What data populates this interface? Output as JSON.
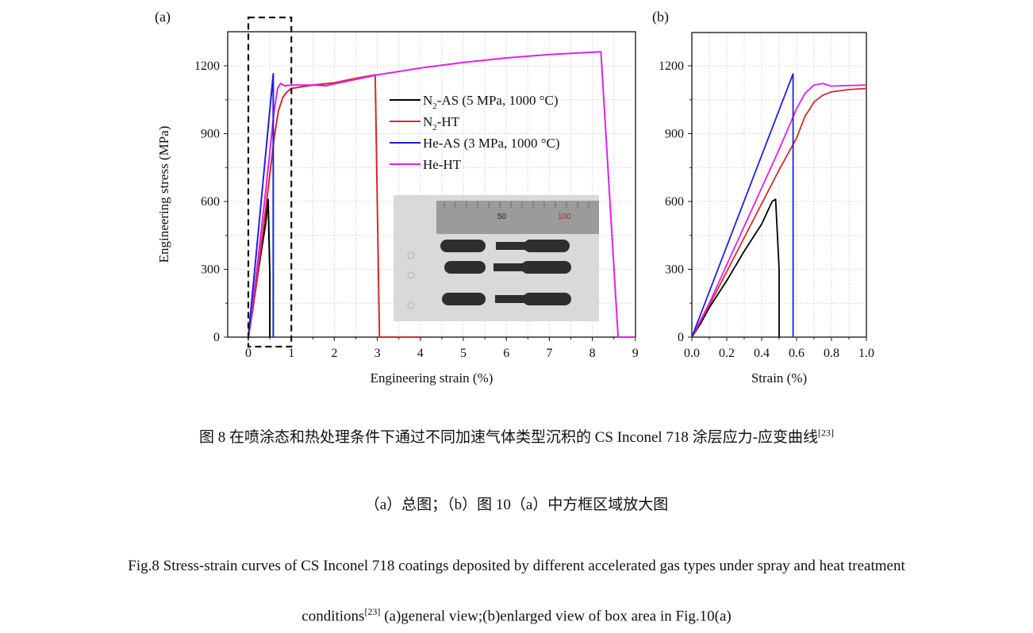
{
  "chart_data": [
    {
      "panel_label": "(a)",
      "type": "line",
      "xlabel": "Engineering strain (%)",
      "ylabel": "Engineering stress (MPa)",
      "xlim": [
        -0.5,
        9
      ],
      "ylim": [
        0,
        1350
      ],
      "xticks": [
        "0",
        "1",
        "2",
        "3",
        "4",
        "5",
        "6",
        "7",
        "8",
        "9"
      ],
      "yticks": [
        "0",
        "300",
        "600",
        "900",
        "1200"
      ],
      "grid": true,
      "legend_position": "upper-middle",
      "series": [
        {
          "name": "N2-AS (5 MPa, 1000 °C)",
          "color": "#000000",
          "x": [
            0,
            0.1,
            0.2,
            0.3,
            0.4,
            0.46,
            0.5,
            0.5
          ],
          "y": [
            0,
            120,
            250,
            380,
            500,
            610,
            280,
            0
          ]
        },
        {
          "name": "N2-HT",
          "color": "#d42a2a",
          "x": [
            0,
            0.2,
            0.4,
            0.6,
            0.7,
            0.8,
            0.9,
            1.0,
            1.5,
            2.0,
            2.5,
            2.95,
            3.05,
            4.0
          ],
          "y": [
            0,
            250,
            560,
            880,
            1000,
            1060,
            1085,
            1100,
            1115,
            1125,
            1145,
            1160,
            0,
            0
          ]
        },
        {
          "name": "He-AS (3 MPa, 1000 °C)",
          "color": "#2020e0",
          "x": [
            0,
            0.58,
            0.58
          ],
          "y": [
            0,
            1165,
            0
          ]
        },
        {
          "name": "He-HT",
          "color": "#e020e8",
          "x": [
            0,
            0.2,
            0.4,
            0.6,
            0.68,
            0.75,
            0.85,
            1.0,
            1.5,
            1.8,
            2.0,
            3.0,
            4.0,
            5.0,
            6.0,
            7.0,
            8.2,
            8.6,
            9.0
          ],
          "y": [
            0,
            300,
            640,
            1000,
            1100,
            1122,
            1112,
            1115,
            1115,
            1112,
            1120,
            1160,
            1190,
            1215,
            1235,
            1250,
            1262,
            0,
            0
          ]
        }
      ],
      "annotation_box": {
        "x": [
          0,
          1
        ],
        "style": "dashed"
      },
      "inset": {
        "ruler_labels": [
          "50",
          "100"
        ]
      }
    },
    {
      "panel_label": "(b)",
      "type": "line",
      "xlabel": "Strain (%)",
      "xlim": [
        0,
        1.0
      ],
      "ylim": [
        0,
        1350
      ],
      "xticks": [
        "0.0",
        "0.2",
        "0.4",
        "0.6",
        "0.8",
        "1.0"
      ],
      "yticks": [
        "0",
        "300",
        "600",
        "900",
        "1200"
      ],
      "grid": true,
      "series": [
        {
          "color": "#000000",
          "x": [
            0,
            0.05,
            0.1,
            0.2,
            0.3,
            0.4,
            0.46,
            0.48,
            0.5,
            0.5
          ],
          "y": [
            0,
            60,
            130,
            250,
            380,
            500,
            600,
            610,
            300,
            0
          ]
        },
        {
          "color": "#d42a2a",
          "x": [
            0,
            0.1,
            0.2,
            0.3,
            0.4,
            0.5,
            0.6,
            0.65,
            0.66,
            0.7,
            0.75,
            0.8,
            0.9,
            1.0
          ],
          "y": [
            0,
            140,
            290,
            440,
            590,
            740,
            880,
            980,
            990,
            1040,
            1070,
            1085,
            1095,
            1100
          ]
        },
        {
          "color": "#2020e0",
          "x": [
            0,
            0.58,
            0.58
          ],
          "y": [
            0,
            1165,
            0
          ]
        },
        {
          "color": "#e020e8",
          "x": [
            0,
            0.1,
            0.2,
            0.3,
            0.4,
            0.5,
            0.6,
            0.65,
            0.7,
            0.75,
            0.8,
            0.85,
            1.0
          ],
          "y": [
            0,
            150,
            320,
            490,
            660,
            830,
            1010,
            1080,
            1115,
            1122,
            1110,
            1112,
            1115
          ]
        }
      ]
    }
  ],
  "captions": {
    "cn_title_main": "图 8 在喷涂态和热处理条件下通过不同加速气体类型沉积的 CS Inconel 718 涂层应力-应变曲线",
    "cn_title_ref": "[23]",
    "cn_sub": "（a）总图；（b）图 10（a）中方框区域放大图",
    "en_line1": "Fig.8 Stress-strain curves of CS Inconel 718 coatings deposited by different accelerated gas types under spray and heat treatment",
    "en_line2_a": "conditions",
    "en_ref": "[23]",
    "en_line2_b": " (a)general view;(b)enlarged view of box area in Fig.10(a)"
  }
}
